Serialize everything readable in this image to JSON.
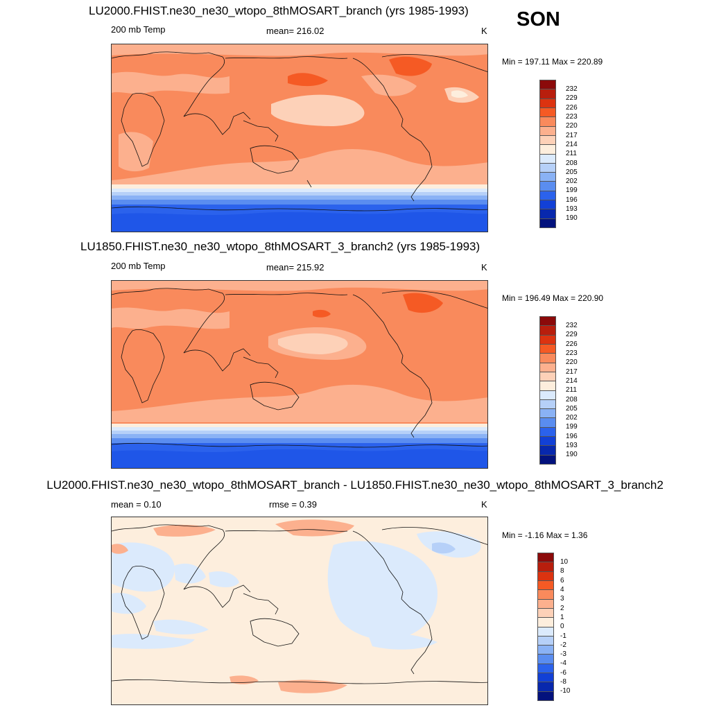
{
  "season": "SON",
  "panels": [
    {
      "title": "LU2000.FHIST.ne30_ne30_wtopo_8thMOSART_branch (yrs 1985-1993)",
      "left_label": "200 mb Temp",
      "center_label": "mean= 216.02",
      "units": "K",
      "minmax": "Min = 197.11 Max = 220.89",
      "colorbar": {
        "labels": [
          "232",
          "229",
          "226",
          "223",
          "220",
          "217",
          "214",
          "211",
          "208",
          "205",
          "202",
          "199",
          "196",
          "193",
          "190"
        ],
        "colors": [
          "#8b0a0a",
          "#b81e0d",
          "#dc3310",
          "#f55a24",
          "#f98a5c",
          "#fcb08e",
          "#fdd1b8",
          "#fdeedd",
          "#dbeafc",
          "#b6d0f8",
          "#8ab2f5",
          "#5a8df0",
          "#2b62ec",
          "#1240d6",
          "#0828ad",
          "#03127d"
        ]
      }
    },
    {
      "title": "LU1850.FHIST.ne30_ne30_wtopo_8thMOSART_3_branch2 (yrs 1985-1993)",
      "left_label": "200 mb Temp",
      "center_label": "mean= 215.92",
      "units": "K",
      "minmax": "Min = 196.49 Max = 220.90",
      "colorbar": {
        "labels": [
          "232",
          "229",
          "226",
          "223",
          "220",
          "217",
          "214",
          "211",
          "208",
          "205",
          "202",
          "199",
          "196",
          "193",
          "190"
        ],
        "colors": [
          "#8b0a0a",
          "#b81e0d",
          "#dc3310",
          "#f55a24",
          "#f98a5c",
          "#fcb08e",
          "#fdd1b8",
          "#fdeedd",
          "#dbeafc",
          "#b6d0f8",
          "#8ab2f5",
          "#5a8df0",
          "#2b62ec",
          "#1240d6",
          "#0828ad",
          "#03127d"
        ]
      }
    },
    {
      "title": "LU2000.FHIST.ne30_ne30_wtopo_8thMOSART_branch - LU1850.FHIST.ne30_ne30_wtopo_8thMOSART_3_branch2",
      "left_label": "mean =   0.10",
      "center_label": "rmse =   0.39",
      "units": "K",
      "minmax": "Min =  -1.16 Max =   1.36",
      "colorbar": {
        "labels": [
          "10",
          "8",
          "6",
          "4",
          "3",
          "2",
          "1",
          "0",
          "-1",
          "-2",
          "-3",
          "-4",
          "-6",
          "-8",
          "-10"
        ],
        "colors": [
          "#8b0a0a",
          "#b81e0d",
          "#dc3310",
          "#f55a24",
          "#f98a5c",
          "#fcb08e",
          "#fdd1b8",
          "#fdeedd",
          "#dbeafc",
          "#b6d0f8",
          "#8ab2f5",
          "#5a8df0",
          "#2b62ec",
          "#1240d6",
          "#0828ad",
          "#03127d"
        ]
      }
    }
  ]
}
